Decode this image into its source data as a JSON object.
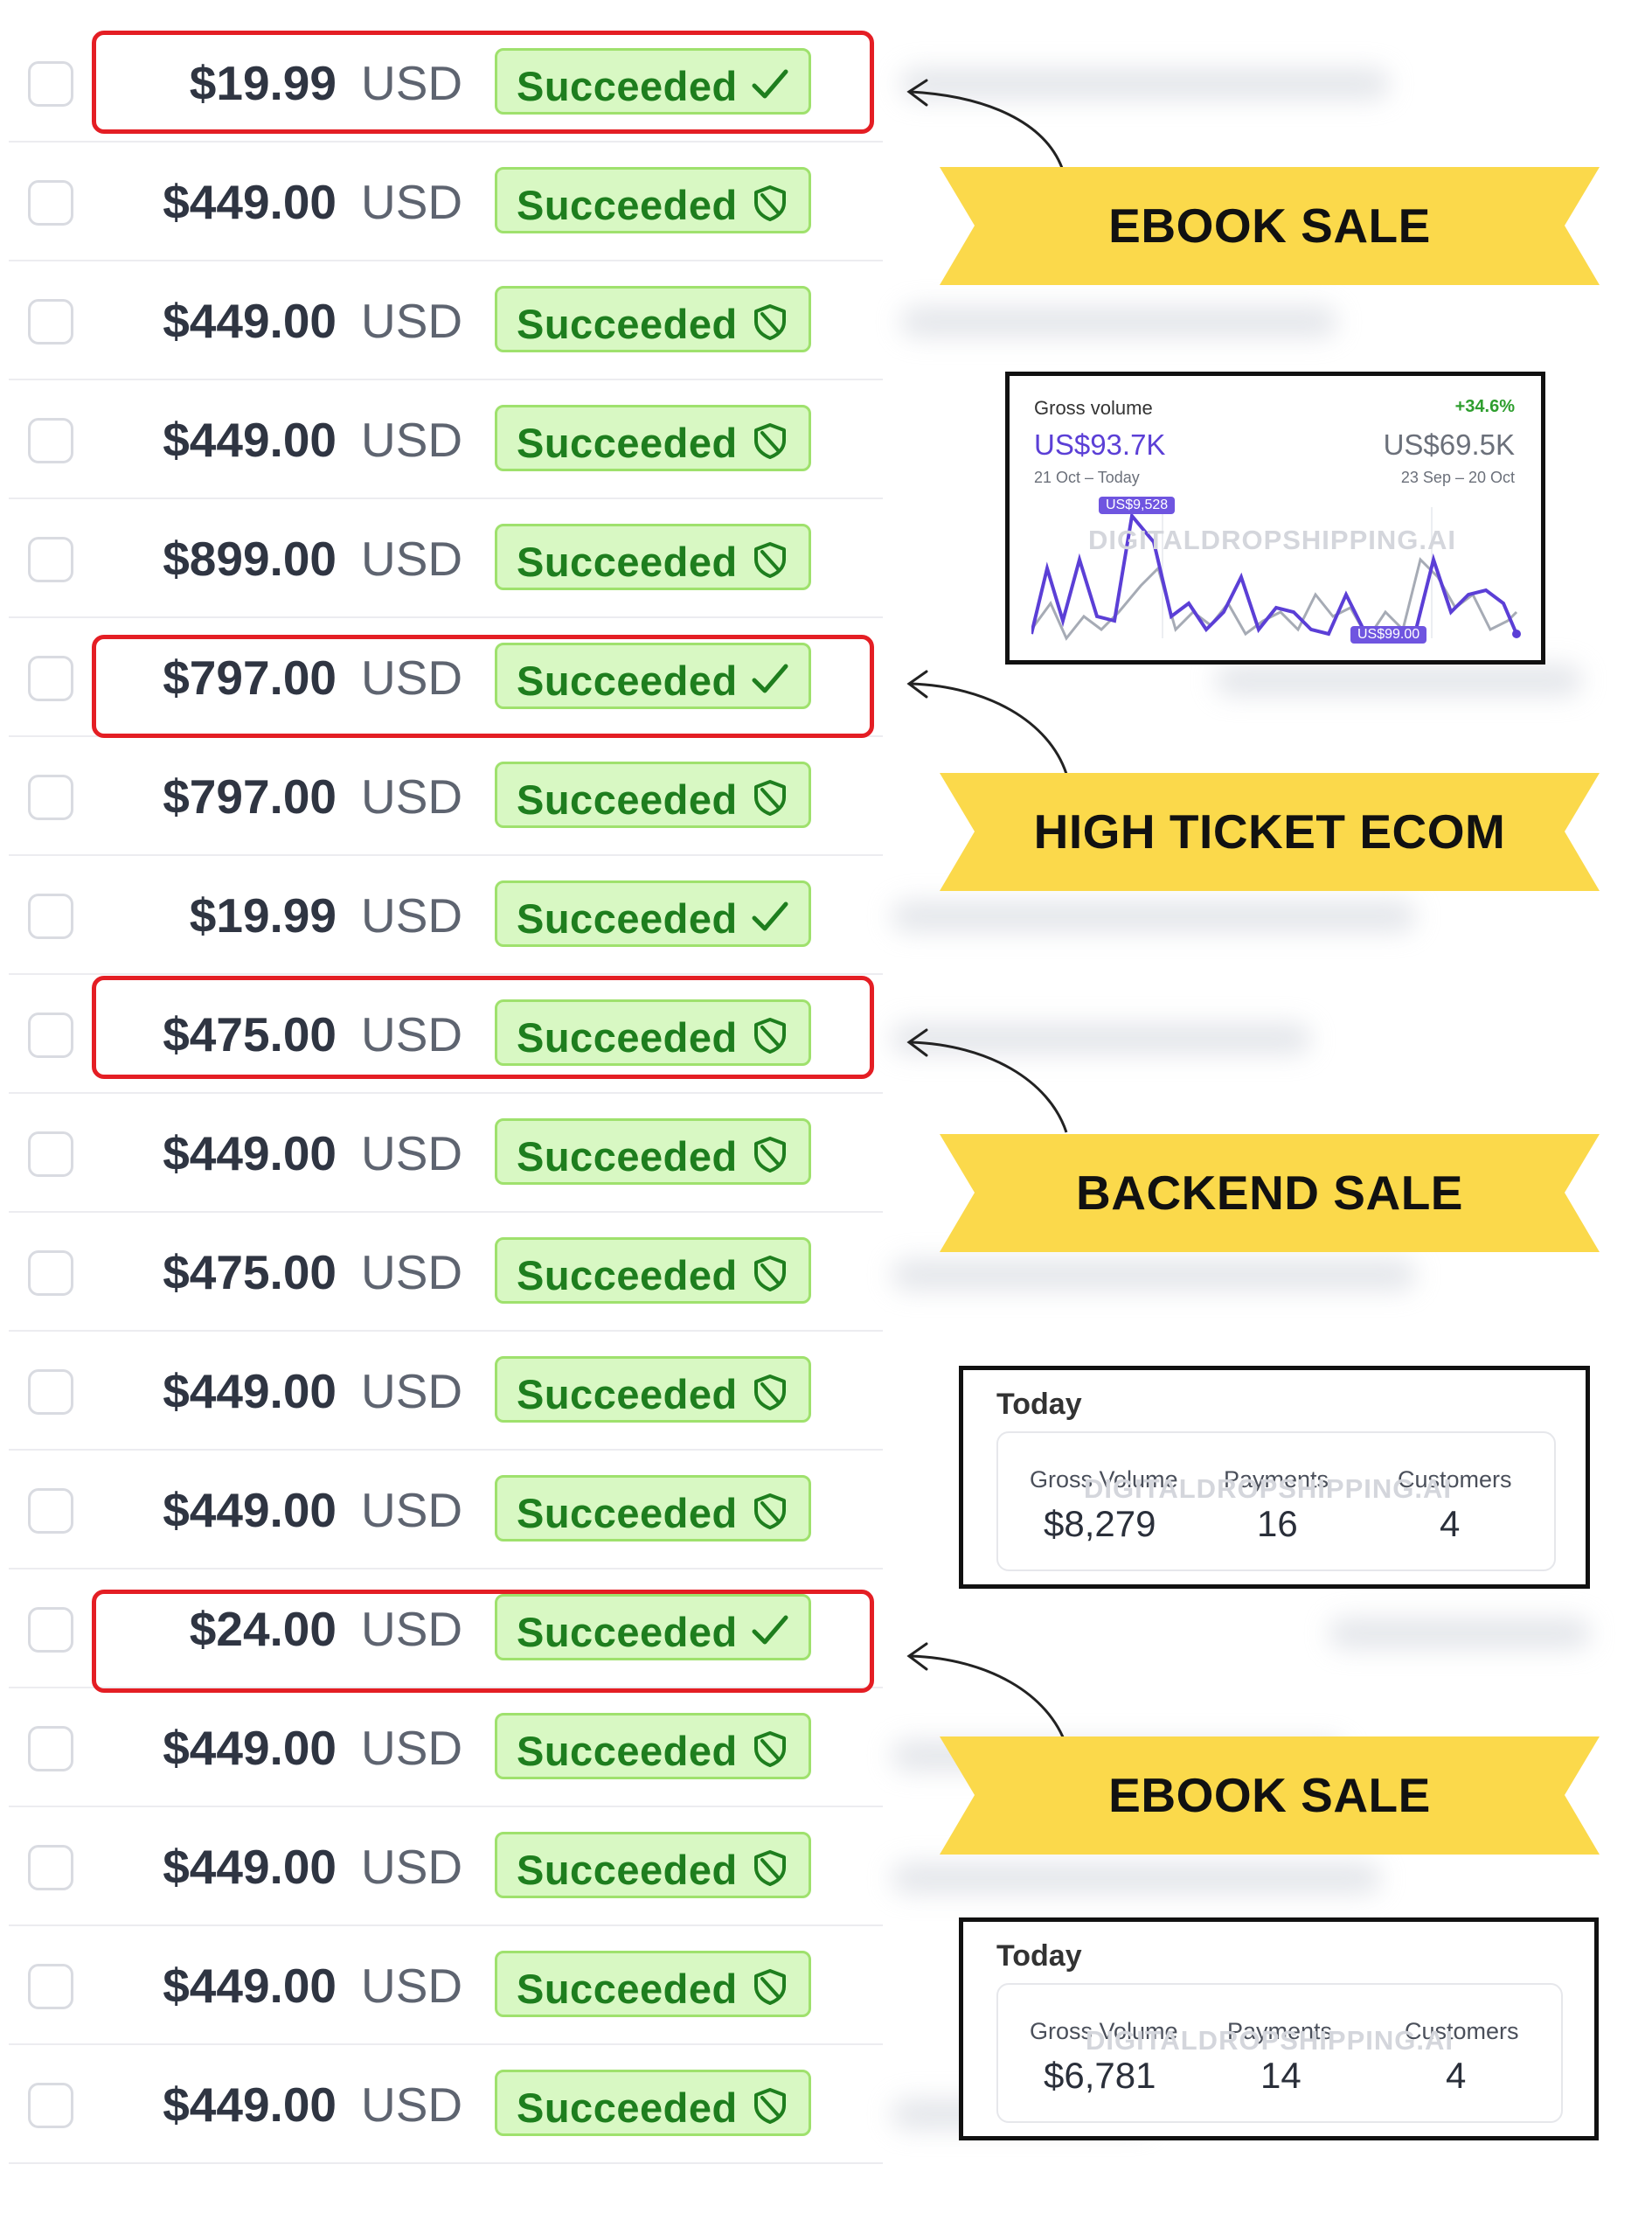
{
  "rows": [
    {
      "amount": "$19.99",
      "currency": "USD",
      "status": "Succeeded",
      "icon": "check-icon"
    },
    {
      "amount": "$449.00",
      "currency": "USD",
      "status": "Succeeded",
      "icon": "shield-icon"
    },
    {
      "amount": "$449.00",
      "currency": "USD",
      "status": "Succeeded",
      "icon": "shield-icon"
    },
    {
      "amount": "$449.00",
      "currency": "USD",
      "status": "Succeeded",
      "icon": "shield-icon"
    },
    {
      "amount": "$899.00",
      "currency": "USD",
      "status": "Succeeded",
      "icon": "shield-icon"
    },
    {
      "amount": "$797.00",
      "currency": "USD",
      "status": "Succeeded",
      "icon": "check-icon"
    },
    {
      "amount": "$797.00",
      "currency": "USD",
      "status": "Succeeded",
      "icon": "shield-icon"
    },
    {
      "amount": "$19.99",
      "currency": "USD",
      "status": "Succeeded",
      "icon": "check-icon"
    },
    {
      "amount": "$475.00",
      "currency": "USD",
      "status": "Succeeded",
      "icon": "shield-icon"
    },
    {
      "amount": "$449.00",
      "currency": "USD",
      "status": "Succeeded",
      "icon": "shield-icon"
    },
    {
      "amount": "$475.00",
      "currency": "USD",
      "status": "Succeeded",
      "icon": "shield-icon"
    },
    {
      "amount": "$449.00",
      "currency": "USD",
      "status": "Succeeded",
      "icon": "shield-icon"
    },
    {
      "amount": "$449.00",
      "currency": "USD",
      "status": "Succeeded",
      "icon": "shield-icon"
    },
    {
      "amount": "$24.00",
      "currency": "USD",
      "status": "Succeeded",
      "icon": "check-icon"
    },
    {
      "amount": "$449.00",
      "currency": "USD",
      "status": "Succeeded",
      "icon": "shield-icon"
    },
    {
      "amount": "$449.00",
      "currency": "USD",
      "status": "Succeeded",
      "icon": "shield-icon"
    },
    {
      "amount": "$449.00",
      "currency": "USD",
      "status": "Succeeded",
      "icon": "shield-icon"
    },
    {
      "amount": "$449.00",
      "currency": "USD",
      "status": "Succeeded",
      "icon": "shield-icon"
    }
  ],
  "highlighted_rows": [
    0,
    5,
    8,
    13
  ],
  "banners": [
    "EBOOK SALE",
    "HIGH TICKET ECOM",
    "BACKEND SALE",
    "EBOOK SALE"
  ],
  "gross_volume_card": {
    "title": "Gross volume",
    "change": "+34.6%",
    "current": "US$93.7K",
    "current_period": "21 Oct – Today",
    "previous": "US$69.5K",
    "previous_period": "23 Sep – 20 Oct",
    "max_tag": "US$9,528",
    "min_tag": "US$99.00"
  },
  "today_cards": [
    {
      "title": "Today",
      "gross_volume_label": "Gross Volume",
      "gross_volume": "$8,279",
      "payments_label": "Payments",
      "payments": "16",
      "customers_label": "Customers",
      "customers": "4"
    },
    {
      "title": "Today",
      "gross_volume_label": "Gross Volume",
      "gross_volume": "$6,781",
      "payments_label": "Payments",
      "payments": "14",
      "customers_label": "Customers",
      "customers": "4"
    }
  ],
  "watermark": "DIGITALDROPSHIPPING.AI",
  "colors": {
    "status_bg": "#d8f8c3",
    "status_border": "#9fe16d",
    "status_text": "#1e7e1e",
    "highlight": "#e41e24",
    "banner": "#fbd94b",
    "chart_current": "#5b3fd6",
    "chart_previous": "#9aa0aa",
    "positive_change": "#2e9e2e"
  }
}
